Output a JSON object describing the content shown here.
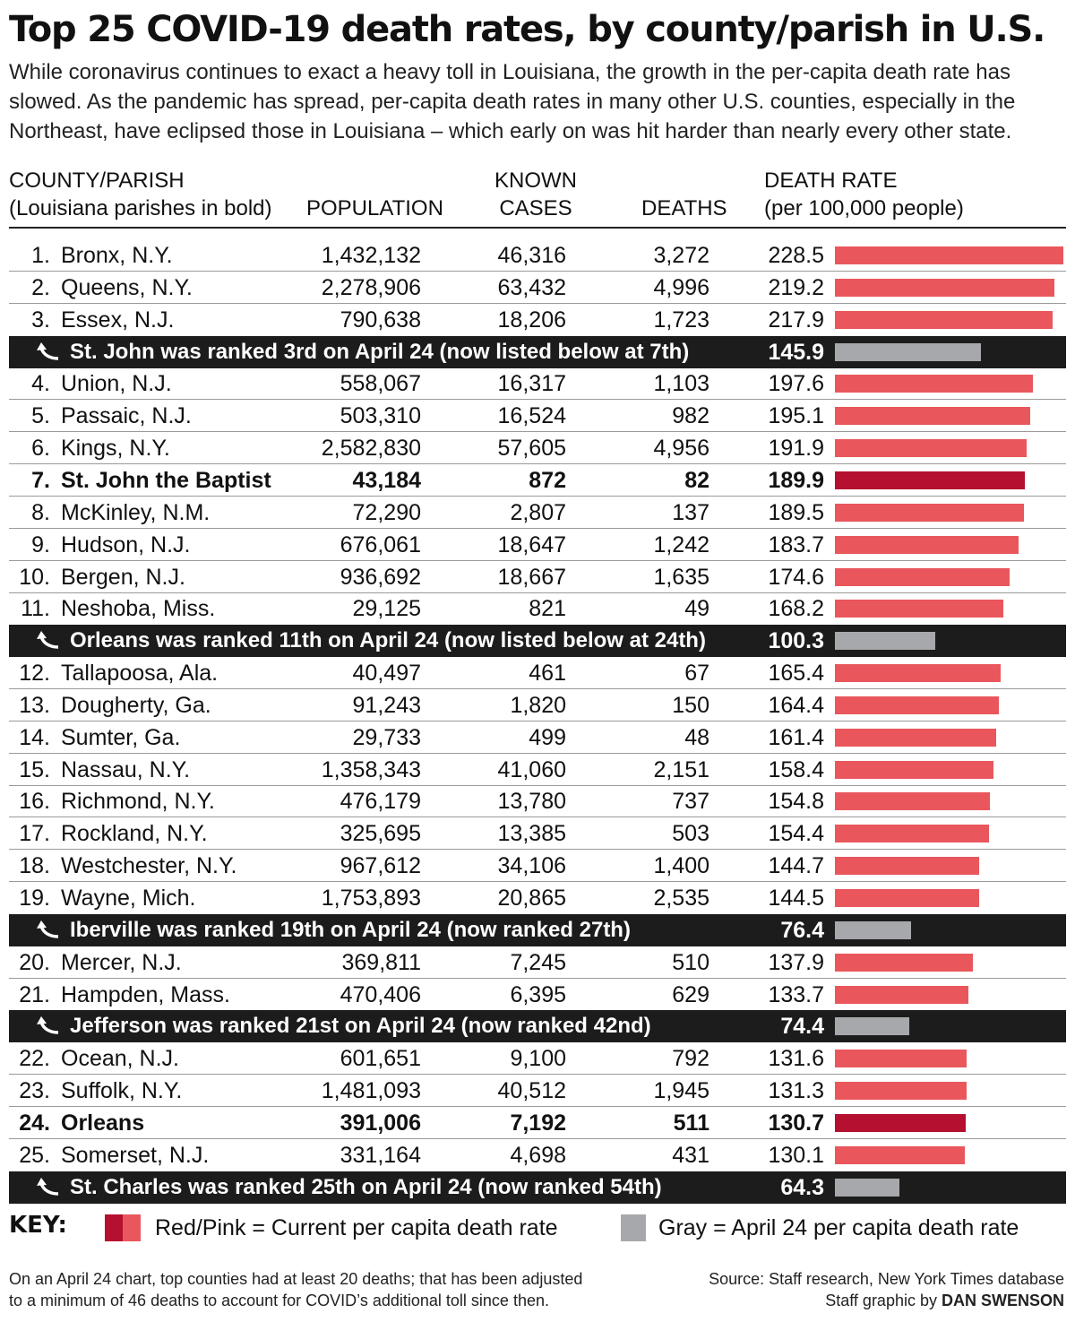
{
  "title": "Top 25 COVID-19 death rates, by county/parish in U.S.",
  "subtitle": "While coronavirus continues to exact a heavy toll in Louisiana, the growth in the per-capita death rate has slowed. As the pandemic has spread, per-capita death rates in many other U.S. counties, especially in the Northeast, have eclipsed those in Louisiana – which early on was hit harder than nearly every other state.",
  "headers": {
    "county_line1": "COUNTY/PARISH",
    "county_line2": "(Louisiana parishes in bold)",
    "population": "POPULATION",
    "cases_line1": "KNOWN",
    "cases_line2": "CASES",
    "deaths": "DEATHS",
    "rate_line1": "DEATH RATE",
    "rate_line2": "(per 100,000 people)"
  },
  "colors": {
    "current": "#e9575c",
    "current_louisiana": "#b5102f",
    "april24": "#a6a8ab",
    "note_bg": "#1c1c1c"
  },
  "key": {
    "label": "KEY:",
    "current_text": "Red/Pink = Current per capita death rate",
    "april_text": "Gray = April 24 per capita death rate"
  },
  "footer": {
    "note_line1": "On an April 24 chart, top counties had at least 20 deaths; that has been adjusted",
    "note_line2": "to a minimum of 46 deaths to account for COVID’s additional toll since then.",
    "source": "Source: Staff research, New York Times database",
    "credit_prefix": "Staff graphic by ",
    "credit_name": "DAN SWENSON"
  },
  "chart_data": {
    "type": "table",
    "bar_scale_max": 228.5,
    "columns": [
      "Rank",
      "County/Parish",
      "Population",
      "Known cases",
      "Deaths",
      "Death rate (per 100,000 people)"
    ],
    "rows": [
      {
        "kind": "row",
        "rank": "1.",
        "name": "Bronx, N.Y.",
        "population": "1,432,132",
        "cases": "46,316",
        "deaths": "3,272",
        "rate": "228.5",
        "value": 228.5,
        "louisiana": false
      },
      {
        "kind": "row",
        "rank": "2.",
        "name": "Queens, N.Y.",
        "population": "2,278,906",
        "cases": "63,432",
        "deaths": "4,996",
        "rate": "219.2",
        "value": 219.2,
        "louisiana": false
      },
      {
        "kind": "row",
        "rank": "3.",
        "name": "Essex, N.J.",
        "population": "790,638",
        "cases": "18,206",
        "deaths": "1,723",
        "rate": "217.9",
        "value": 217.9,
        "louisiana": false
      },
      {
        "kind": "note",
        "text": "St. John was ranked 3rd on April 24 (now listed below at 7th)",
        "rate": "145.9",
        "value": 145.9
      },
      {
        "kind": "row",
        "rank": "4.",
        "name": "Union, N.J.",
        "population": "558,067",
        "cases": "16,317",
        "deaths": "1,103",
        "rate": "197.6",
        "value": 197.6,
        "louisiana": false
      },
      {
        "kind": "row",
        "rank": "5.",
        "name": "Passaic, N.J.",
        "population": "503,310",
        "cases": "16,524",
        "deaths": "982",
        "rate": "195.1",
        "value": 195.1,
        "louisiana": false
      },
      {
        "kind": "row",
        "rank": "6.",
        "name": "Kings, N.Y.",
        "population": "2,582,830",
        "cases": "57,605",
        "deaths": "4,956",
        "rate": "191.9",
        "value": 191.9,
        "louisiana": false
      },
      {
        "kind": "row",
        "rank": "7.",
        "name": "St. John the Baptist",
        "population": "43,184",
        "cases": "872",
        "deaths": "82",
        "rate": "189.9",
        "value": 189.9,
        "louisiana": true
      },
      {
        "kind": "row",
        "rank": "8.",
        "name": "McKinley, N.M.",
        "population": "72,290",
        "cases": "2,807",
        "deaths": "137",
        "rate": "189.5",
        "value": 189.5,
        "louisiana": false
      },
      {
        "kind": "row",
        "rank": "9.",
        "name": "Hudson, N.J.",
        "population": "676,061",
        "cases": "18,647",
        "deaths": "1,242",
        "rate": "183.7",
        "value": 183.7,
        "louisiana": false
      },
      {
        "kind": "row",
        "rank": "10.",
        "name": "Bergen, N.J.",
        "population": "936,692",
        "cases": "18,667",
        "deaths": "1,635",
        "rate": "174.6",
        "value": 174.6,
        "louisiana": false
      },
      {
        "kind": "row",
        "rank": "11.",
        "name": "Neshoba, Miss.",
        "population": "29,125",
        "cases": "821",
        "deaths": "49",
        "rate": "168.2",
        "value": 168.2,
        "louisiana": false
      },
      {
        "kind": "note",
        "text": "Orleans was ranked 11th on April 24 (now listed below at 24th)",
        "rate": "100.3",
        "value": 100.3
      },
      {
        "kind": "row",
        "rank": "12.",
        "name": "Tallapoosa, Ala.",
        "population": "40,497",
        "cases": "461",
        "deaths": "67",
        "rate": "165.4",
        "value": 165.4,
        "louisiana": false
      },
      {
        "kind": "row",
        "rank": "13.",
        "name": "Dougherty, Ga.",
        "population": "91,243",
        "cases": "1,820",
        "deaths": "150",
        "rate": "164.4",
        "value": 164.4,
        "louisiana": false
      },
      {
        "kind": "row",
        "rank": "14.",
        "name": "Sumter, Ga.",
        "population": "29,733",
        "cases": "499",
        "deaths": "48",
        "rate": "161.4",
        "value": 161.4,
        "louisiana": false
      },
      {
        "kind": "row",
        "rank": "15.",
        "name": "Nassau, N.Y.",
        "population": "1,358,343",
        "cases": "41,060",
        "deaths": "2,151",
        "rate": "158.4",
        "value": 158.4,
        "louisiana": false
      },
      {
        "kind": "row",
        "rank": "16.",
        "name": "Richmond, N.Y.",
        "population": "476,179",
        "cases": "13,780",
        "deaths": "737",
        "rate": "154.8",
        "value": 154.8,
        "louisiana": false
      },
      {
        "kind": "row",
        "rank": "17.",
        "name": "Rockland, N.Y.",
        "population": "325,695",
        "cases": "13,385",
        "deaths": "503",
        "rate": "154.4",
        "value": 154.4,
        "louisiana": false
      },
      {
        "kind": "row",
        "rank": "18.",
        "name": "Westchester, N.Y.",
        "population": "967,612",
        "cases": "34,106",
        "deaths": "1,400",
        "rate": "144.7",
        "value": 144.7,
        "louisiana": false
      },
      {
        "kind": "row",
        "rank": "19.",
        "name": "Wayne, Mich.",
        "population": "1,753,893",
        "cases": "20,865",
        "deaths": "2,535",
        "rate": "144.5",
        "value": 144.5,
        "louisiana": false
      },
      {
        "kind": "note",
        "text": "Iberville was ranked 19th on April 24 (now ranked 27th)",
        "rate": "76.4",
        "value": 76.4
      },
      {
        "kind": "row",
        "rank": "20.",
        "name": "Mercer, N.J.",
        "population": "369,811",
        "cases": "7,245",
        "deaths": "510",
        "rate": "137.9",
        "value": 137.9,
        "louisiana": false
      },
      {
        "kind": "row",
        "rank": "21.",
        "name": "Hampden, Mass.",
        "population": "470,406",
        "cases": "6,395",
        "deaths": "629",
        "rate": "133.7",
        "value": 133.7,
        "louisiana": false
      },
      {
        "kind": "note",
        "text": "Jefferson was ranked 21st on April 24 (now ranked 42nd)",
        "rate": "74.4",
        "value": 74.4
      },
      {
        "kind": "row",
        "rank": "22.",
        "name": "Ocean, N.J.",
        "population": "601,651",
        "cases": "9,100",
        "deaths": "792",
        "rate": "131.6",
        "value": 131.6,
        "louisiana": false
      },
      {
        "kind": "row",
        "rank": "23.",
        "name": "Suffolk, N.Y.",
        "population": "1,481,093",
        "cases": "40,512",
        "deaths": "1,945",
        "rate": "131.3",
        "value": 131.3,
        "louisiana": false
      },
      {
        "kind": "row",
        "rank": "24.",
        "name": "Orleans",
        "population": "391,006",
        "cases": "7,192",
        "deaths": "511",
        "rate": "130.7",
        "value": 130.7,
        "louisiana": true
      },
      {
        "kind": "row",
        "rank": "25.",
        "name": "Somerset, N.J.",
        "population": "331,164",
        "cases": "4,698",
        "deaths": "431",
        "rate": "130.1",
        "value": 130.1,
        "louisiana": false
      },
      {
        "kind": "note",
        "text": "St. Charles was ranked 25th on April 24 (now ranked 54th)",
        "rate": "64.3",
        "value": 64.3
      }
    ]
  }
}
